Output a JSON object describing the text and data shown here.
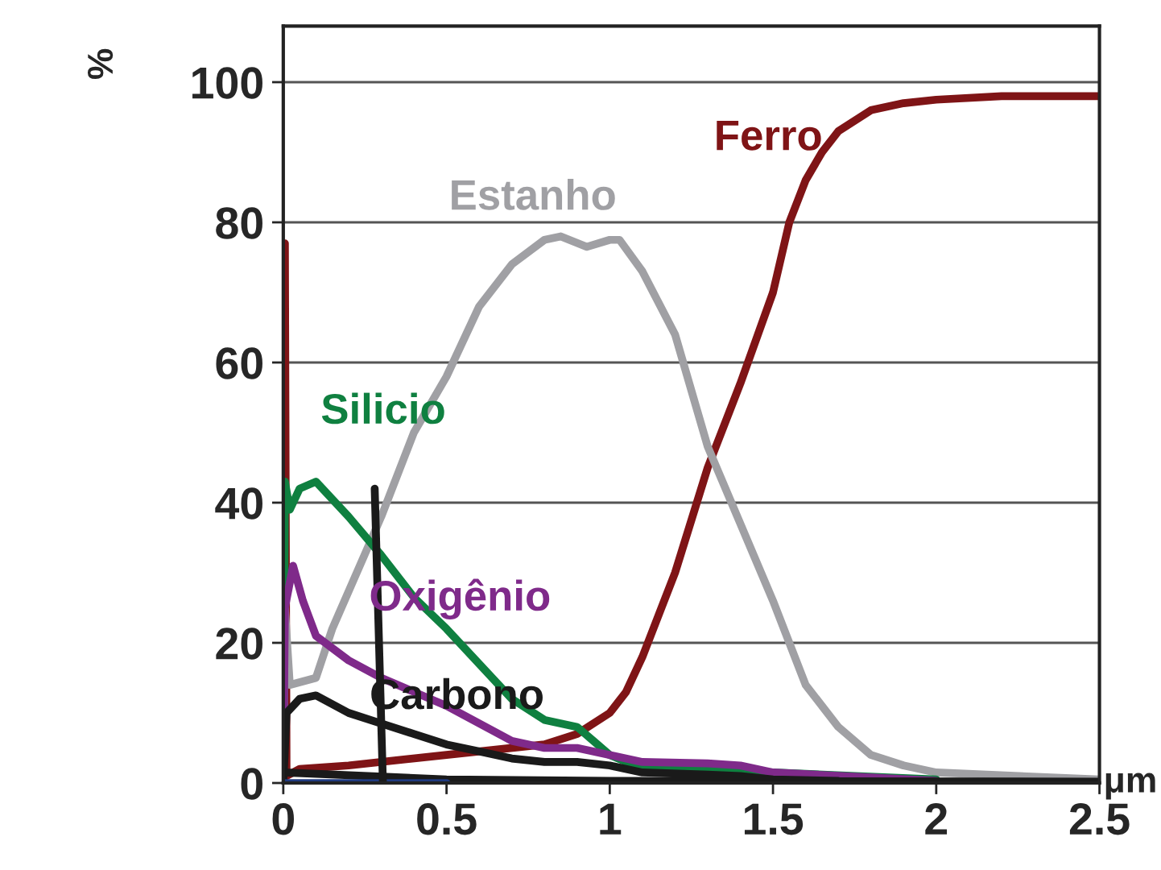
{
  "chart_data": {
    "type": "line",
    "xlabel": "μm",
    "ylabel": "%",
    "xlim": [
      0,
      2.5
    ],
    "ylim": [
      0,
      108
    ],
    "xticks": [
      0,
      0.5,
      1,
      1.5,
      2,
      2.5
    ],
    "yticks": [
      0,
      20,
      40,
      60,
      80,
      100
    ],
    "grid": "y",
    "marker": "none",
    "line_style": "solid",
    "series": [
      {
        "name": "Ferro",
        "color": "#7f1416",
        "x": [
          0,
          0.005,
          0.01,
          0.05,
          0.2,
          0.5,
          0.8,
          0.9,
          1.0,
          1.05,
          1.1,
          1.2,
          1.3,
          1.4,
          1.5,
          1.55,
          1.6,
          1.65,
          1.7,
          1.8,
          1.9,
          2.0,
          2.2,
          2.5
        ],
        "values": [
          0,
          77,
          1,
          2,
          2.5,
          4,
          5.5,
          7,
          10,
          13,
          18,
          30,
          45,
          57,
          70,
          80,
          86,
          90,
          93,
          96,
          97,
          97.5,
          98,
          98
        ]
      },
      {
        "name": "Estanho",
        "color": "#a0a0a4",
        "x": [
          0,
          0.005,
          0.02,
          0.1,
          0.15,
          0.3,
          0.4,
          0.5,
          0.6,
          0.7,
          0.8,
          0.85,
          0.93,
          1.0,
          1.03,
          1.1,
          1.2,
          1.3,
          1.4,
          1.5,
          1.6,
          1.7,
          1.8,
          1.9,
          2.0,
          2.5
        ],
        "values": [
          0,
          25,
          14,
          15,
          22,
          38,
          50,
          58,
          68,
          74,
          77.5,
          78,
          76.5,
          77.5,
          77.5,
          73,
          64,
          48,
          37,
          26,
          14,
          8,
          4,
          2.5,
          1.5,
          0.5
        ]
      },
      {
        "name": "Silicio",
        "color": "#0f8040",
        "x": [
          0,
          0.005,
          0.02,
          0.05,
          0.1,
          0.2,
          0.3,
          0.4,
          0.5,
          0.6,
          0.7,
          0.8,
          0.9,
          0.95,
          1.0,
          1.05,
          1.1,
          1.3,
          1.5,
          2.0
        ],
        "values": [
          0,
          43,
          39,
          42,
          43,
          38,
          32.5,
          26.5,
          22,
          17,
          12,
          9,
          8,
          6,
          4,
          3,
          2.5,
          2,
          1.5,
          0.5
        ]
      },
      {
        "name": "Oxigênio",
        "color": "#7f2a8a",
        "x": [
          0,
          0.005,
          0.03,
          0.06,
          0.1,
          0.2,
          0.3,
          0.4,
          0.5,
          0.6,
          0.7,
          0.8,
          0.9,
          1.0,
          1.1,
          1.3,
          1.4,
          1.5,
          1.8,
          2.0
        ],
        "values": [
          0,
          25,
          31,
          26,
          21,
          17.5,
          15,
          13,
          11,
          8.5,
          6,
          5,
          5,
          4,
          3,
          2.8,
          2.5,
          1.5,
          0.8,
          0.3
        ]
      },
      {
        "name": "Carbono",
        "color": "#1a1a1a",
        "x": [
          0,
          0.01,
          0.05,
          0.1,
          0.2,
          0.3,
          0.4,
          0.5,
          0.6,
          0.7,
          0.8,
          0.9,
          1.0,
          1.1,
          1.3,
          1.4,
          1.5,
          1.7
        ],
        "values": [
          0,
          10,
          12,
          12.5,
          10,
          8.5,
          7,
          5.5,
          4.5,
          3.5,
          3,
          3,
          2.5,
          1.5,
          1.2,
          1,
          0.5,
          0.3
        ]
      },
      {
        "color": "#1a1a1a",
        "x": [
          0,
          0.5,
          1.0,
          2.5
        ],
        "values": [
          1.5,
          0.5,
          0.3,
          0.2
        ]
      },
      {
        "color": "#1f3a80",
        "x": [
          0,
          0.5
        ],
        "values": [
          0,
          0
        ]
      },
      {
        "color": "#1a1a1a",
        "x": [
          0.28,
          0.3052
        ],
        "values": [
          42,
          0
        ]
      }
    ]
  }
}
